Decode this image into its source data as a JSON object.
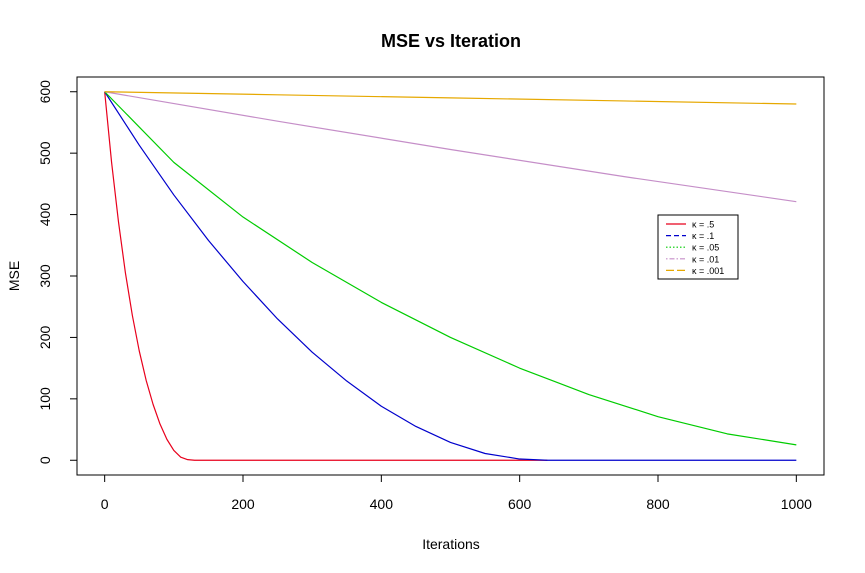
{
  "chart_data": {
    "type": "line",
    "title": "MSE vs Iteration",
    "xlabel": "Iterations",
    "ylabel": "MSE",
    "xlim": [
      -40,
      1040
    ],
    "ylim": [
      -24,
      624
    ],
    "xticks": [
      0,
      200,
      400,
      600,
      800,
      1000
    ],
    "xtick_labels": [
      "0",
      "200",
      "400",
      "600",
      "800",
      "1000"
    ],
    "yticks": [
      0,
      100,
      200,
      300,
      400,
      500,
      600
    ],
    "ytick_labels": [
      "0",
      "100",
      "200",
      "300",
      "400",
      "500",
      "600"
    ],
    "grid": false,
    "legend_position": "right",
    "series": [
      {
        "name": "κ = .5",
        "color": "#e8001c",
        "dash": "solid",
        "x": [
          0,
          10,
          20,
          30,
          40,
          50,
          60,
          70,
          80,
          90,
          100,
          110,
          120,
          130,
          200,
          400,
          640
        ],
        "y": [
          600,
          485,
          388,
          305,
          236,
          178,
          130,
          91,
          59,
          34,
          16,
          5,
          1,
          0,
          0,
          0,
          0
        ]
      },
      {
        "name": "κ = .1",
        "color": "#0000cc",
        "dash": "dashed",
        "x": [
          0,
          50,
          100,
          150,
          200,
          250,
          300,
          350,
          400,
          450,
          500,
          550,
          600,
          640,
          700,
          800,
          900,
          1000
        ],
        "y": [
          600,
          513,
          432,
          358,
          291,
          230,
          176,
          129,
          88,
          55,
          29,
          11,
          2,
          0,
          0,
          0,
          0,
          0
        ]
      },
      {
        "name": "κ = .05",
        "color": "#00cc00",
        "dash": "dotted",
        "x": [
          0,
          100,
          200,
          300,
          400,
          500,
          600,
          700,
          800,
          900,
          1000
        ],
        "y": [
          600,
          485,
          396,
          322,
          257,
          200,
          150,
          107,
          71,
          43,
          25
        ]
      },
      {
        "name": "κ = .01",
        "color": "#c58ec8",
        "dash": "dotdash",
        "x": [
          0,
          250,
          500,
          750,
          1000
        ],
        "y": [
          600,
          552,
          506,
          462,
          421
        ]
      },
      {
        "name": "κ = .001",
        "color": "#e6a800",
        "dash": "longdash",
        "x": [
          0,
          250,
          500,
          750,
          1000
        ],
        "y": [
          600,
          595,
          590,
          585,
          580
        ]
      }
    ]
  }
}
